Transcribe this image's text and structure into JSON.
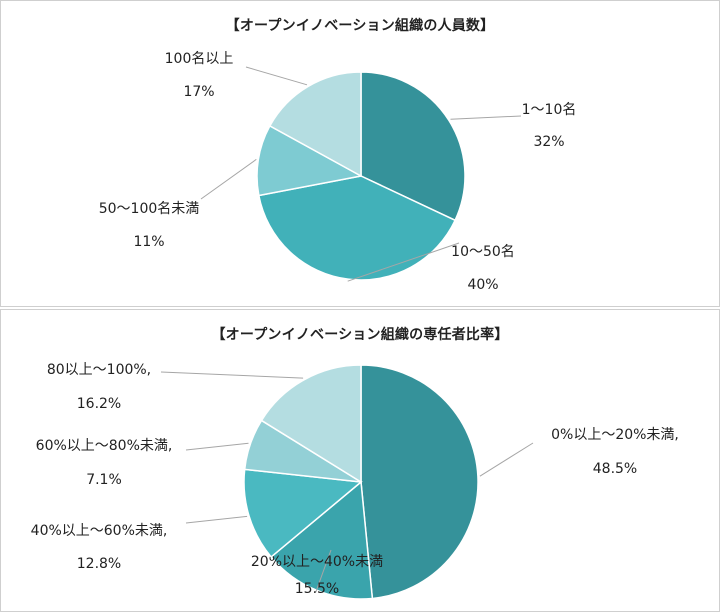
{
  "chart_data": [
    {
      "type": "pie",
      "title": "【オープンイノベーション組織の人員数】",
      "categories": [
        "1～10名",
        "10～50名",
        "50～100名未満",
        "100名以上"
      ],
      "values": [
        32,
        40,
        11,
        17
      ],
      "value_labels": [
        "32%",
        "40%",
        "11%",
        "17%"
      ],
      "colors": [
        "#35929A",
        "#41B1B9",
        "#7ECBD2",
        "#B4DDE1"
      ],
      "label_names": [
        "1～10名",
        "10～50名",
        "50～100名未満",
        "100名以上"
      ]
    },
    {
      "type": "pie",
      "title": "【オープンイノベーション組織の専任者比率】",
      "categories": [
        "0%以上～20%未満",
        "20%以上～40%未満",
        "40%以上～60%未満",
        "60%以上～80%未満",
        "80以上～100%"
      ],
      "values": [
        48.5,
        15.5,
        12.8,
        7.1,
        16.2
      ],
      "value_labels": [
        "48.5%",
        "15.5%",
        "12.8%",
        "7.1%",
        "16.2%"
      ],
      "colors": [
        "#35929A",
        "#3AA4AC",
        "#4AB9C1",
        "#93D0D6",
        "#B4DDE1"
      ],
      "label_names": [
        "0%以上～20%未満,",
        "20%以上～40%未満",
        "40%以上～60%未満,",
        "60%以上～80%未満,",
        "80以上～100%,"
      ]
    }
  ]
}
